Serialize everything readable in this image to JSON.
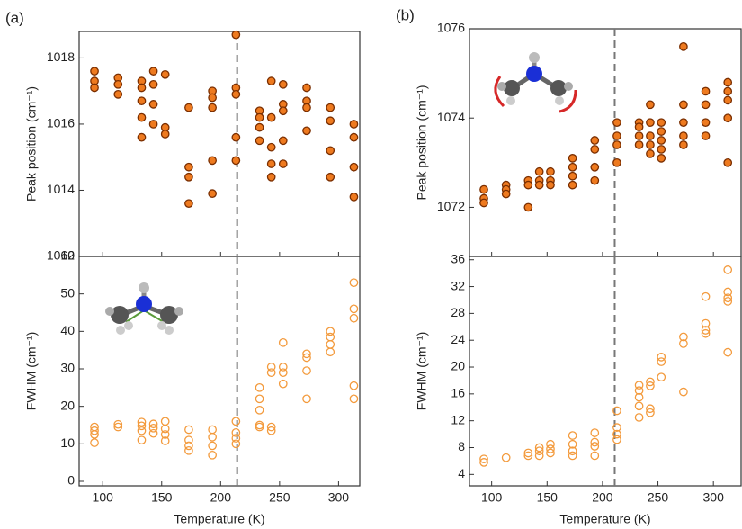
{
  "chart_data": [
    {
      "type": "scatter",
      "panel_label": "(a)",
      "ylabel": "Peak position (cm⁻¹)",
      "marker": "filled",
      "color": "#ee7a1f",
      "edgecolor": "#7a2e00",
      "xlim": [
        80,
        318
      ],
      "ylim": [
        1012,
        1018.8
      ],
      "xticks": [
        100,
        150,
        200,
        250,
        300
      ],
      "xticklabels": false,
      "yticks": [
        1012,
        1014,
        1016,
        1018
      ],
      "vline": 214,
      "x": [
        93,
        93,
        93,
        113,
        113,
        113,
        133,
        133,
        133,
        133,
        133,
        143,
        143,
        143,
        143,
        153,
        153,
        153,
        173,
        173,
        173,
        173,
        193,
        193,
        193,
        193,
        193,
        213,
        213,
        213,
        213,
        213,
        233,
        233,
        233,
        233,
        243,
        243,
        243,
        243,
        243,
        253,
        253,
        253,
        253,
        253,
        273,
        273,
        273,
        273,
        293,
        293,
        293,
        293,
        313,
        313,
        313,
        313
      ],
      "y": [
        1017.6,
        1017.3,
        1017.1,
        1017.4,
        1017.2,
        1016.9,
        1017.3,
        1017.1,
        1016.7,
        1016.2,
        1015.6,
        1017.6,
        1017.2,
        1016.6,
        1016.0,
        1017.5,
        1015.9,
        1015.7,
        1016.5,
        1014.7,
        1014.4,
        1013.6,
        1017.0,
        1016.8,
        1016.5,
        1014.9,
        1013.9,
        1018.7,
        1017.1,
        1016.9,
        1015.6,
        1014.9,
        1016.4,
        1016.2,
        1015.9,
        1015.5,
        1017.3,
        1016.2,
        1015.3,
        1014.8,
        1014.4,
        1017.2,
        1016.6,
        1016.4,
        1015.5,
        1014.8,
        1017.1,
        1016.7,
        1016.5,
        1015.8,
        1016.5,
        1016.1,
        1015.2,
        1014.4,
        1016.0,
        1015.6,
        1014.7,
        1013.8
      ]
    },
    {
      "type": "scatter",
      "ylabel": "FWHM (cm⁻¹)",
      "xlabel": "Temperature (K)",
      "marker": "hollow",
      "color": "#f39a3c",
      "xlim": [
        80,
        318
      ],
      "ylim": [
        -1.2,
        60
      ],
      "xticks": [
        100,
        150,
        200,
        250,
        300
      ],
      "yticks": [
        0,
        10,
        20,
        30,
        40,
        50,
        60
      ],
      "vline": 214,
      "x": [
        93,
        93,
        93,
        93,
        113,
        113,
        133,
        133,
        133,
        133,
        143,
        143,
        143,
        153,
        153,
        153,
        153,
        173,
        173,
        173,
        173,
        193,
        193,
        193,
        193,
        213,
        213,
        213,
        213,
        233,
        233,
        233,
        233,
        233,
        243,
        243,
        243,
        243,
        253,
        253,
        253,
        253,
        273,
        273,
        273,
        273,
        293,
        293,
        293,
        293,
        313,
        313,
        313,
        313,
        313
      ],
      "y": [
        14.5,
        13.5,
        12.5,
        10.3,
        15.2,
        14.5,
        15.8,
        14.8,
        13.5,
        11.0,
        15.3,
        14.2,
        12.8,
        16.0,
        14.0,
        12.5,
        10.8,
        13.8,
        11.0,
        9.5,
        8.2,
        13.8,
        11.8,
        9.5,
        7.0,
        16.0,
        13.0,
        11.5,
        10.0,
        25.0,
        22.0,
        19.0,
        15.0,
        14.5,
        30.5,
        29.0,
        14.5,
        13.5,
        37.0,
        30.5,
        29.0,
        26.0,
        34.0,
        33.0,
        29.5,
        22.0,
        40.0,
        38.5,
        36.5,
        34.5,
        53.0,
        46.0,
        43.5,
        25.5,
        22.0
      ]
    },
    {
      "type": "scatter",
      "panel_label": "(b)",
      "ylabel": "Peak position (cm⁻¹)",
      "marker": "filled",
      "color": "#ee7a1f",
      "edgecolor": "#7a2e00",
      "xlim": [
        80,
        325
      ],
      "ylim": [
        1070.9,
        1076
      ],
      "xticks": [
        100,
        150,
        200,
        250,
        300
      ],
      "xticklabels": false,
      "yticks": [
        1072,
        1074,
        1076
      ],
      "vline": 211,
      "x": [
        93,
        93,
        93,
        113,
        113,
        113,
        133,
        133,
        133,
        143,
        143,
        143,
        153,
        153,
        153,
        173,
        173,
        173,
        173,
        193,
        193,
        193,
        193,
        213,
        213,
        213,
        213,
        233,
        233,
        233,
        233,
        243,
        243,
        243,
        243,
        243,
        253,
        253,
        253,
        253,
        253,
        273,
        273,
        273,
        273,
        273,
        293,
        293,
        293,
        293,
        313,
        313,
        313,
        313,
        313
      ],
      "y": [
        1072.4,
        1072.2,
        1072.1,
        1072.5,
        1072.4,
        1072.3,
        1072.6,
        1072.5,
        1072.0,
        1072.8,
        1072.6,
        1072.5,
        1072.8,
        1072.6,
        1072.5,
        1073.1,
        1072.9,
        1072.7,
        1072.5,
        1073.5,
        1073.3,
        1072.9,
        1072.6,
        1073.9,
        1073.6,
        1073.4,
        1073.0,
        1073.9,
        1073.8,
        1073.6,
        1073.4,
        1074.3,
        1073.9,
        1073.6,
        1073.4,
        1073.2,
        1073.9,
        1073.7,
        1073.5,
        1073.3,
        1073.1,
        1075.6,
        1074.3,
        1073.9,
        1073.6,
        1073.4,
        1074.6,
        1074.3,
        1073.9,
        1073.6,
        1074.8,
        1074.6,
        1074.4,
        1074.0,
        1073.0
      ]
    },
    {
      "type": "scatter",
      "ylabel": "FWHM (cm⁻¹)",
      "xlabel": "Temperature (K)",
      "marker": "hollow",
      "color": "#f39a3c",
      "xlim": [
        80,
        325
      ],
      "ylim": [
        2.3,
        36.5
      ],
      "xticks": [
        100,
        150,
        200,
        250,
        300
      ],
      "yticks": [
        4,
        8,
        12,
        16,
        20,
        24,
        28,
        32,
        36
      ],
      "vline": 211,
      "x": [
        93,
        93,
        113,
        133,
        133,
        143,
        143,
        143,
        153,
        153,
        153,
        173,
        173,
        173,
        173,
        193,
        193,
        193,
        193,
        213,
        213,
        213,
        213,
        233,
        233,
        233,
        233,
        233,
        243,
        243,
        243,
        243,
        253,
        253,
        253,
        273,
        273,
        273,
        293,
        293,
        293,
        293,
        313,
        313,
        313,
        313,
        313
      ],
      "y": [
        6.3,
        5.8,
        6.5,
        7.2,
        6.8,
        8.0,
        7.5,
        6.8,
        8.5,
        7.8,
        7.2,
        9.8,
        8.5,
        7.5,
        6.8,
        10.2,
        8.8,
        8.2,
        6.8,
        13.5,
        11.0,
        10.0,
        9.2,
        17.3,
        16.5,
        15.5,
        14.2,
        12.5,
        17.8,
        17.2,
        13.8,
        13.2,
        21.5,
        20.8,
        18.5,
        24.5,
        23.5,
        16.3,
        30.5,
        26.5,
        25.5,
        25.0,
        34.5,
        31.2,
        30.3,
        29.8,
        22.2
      ]
    }
  ]
}
